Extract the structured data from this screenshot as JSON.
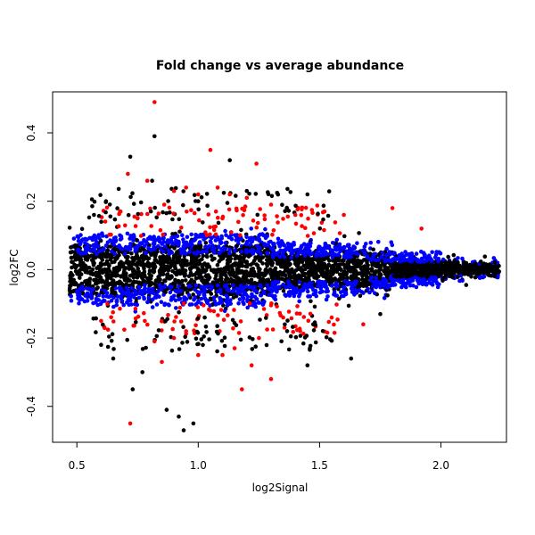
{
  "chart_data": {
    "type": "scatter",
    "title": "Fold change vs average abundance",
    "xlabel": "log2Signal",
    "ylabel": "log2FC",
    "xlim": [
      0.4,
      2.27
    ],
    "ylim": [
      -0.505,
      0.52
    ],
    "x_ticks": [
      "0.5",
      "1.0",
      "1.5",
      "2.0"
    ],
    "y_ticks": [
      "-0.4",
      "-0.2",
      "0.0",
      "0.2",
      "0.4"
    ],
    "grid": false,
    "legend": "none",
    "colors": {
      "black": "#000000",
      "blue": "#0000ff",
      "red": "#ff0000"
    },
    "series": [
      {
        "color": "red",
        "points": [
          [
            0.82,
            0.49
          ],
          [
            1.05,
            0.35
          ],
          [
            1.24,
            0.31
          ],
          [
            0.71,
            0.28
          ],
          [
            0.79,
            0.26
          ],
          [
            0.9,
            0.23
          ],
          [
            0.95,
            0.24
          ],
          [
            1.0,
            0.22
          ],
          [
            1.08,
            0.24
          ],
          [
            1.13,
            0.22
          ],
          [
            1.2,
            0.21
          ],
          [
            0.68,
            0.17
          ],
          [
            0.86,
            0.19
          ],
          [
            1.3,
            0.19
          ],
          [
            1.4,
            0.16
          ],
          [
            1.52,
            0.17
          ],
          [
            1.6,
            0.16
          ],
          [
            1.8,
            0.18
          ],
          [
            0.75,
            0.15
          ],
          [
            1.1,
            0.15
          ],
          [
            1.92,
            0.12
          ],
          [
            0.72,
            -0.45
          ],
          [
            1.18,
            -0.35
          ],
          [
            1.3,
            -0.32
          ],
          [
            0.85,
            -0.27
          ],
          [
            1.0,
            -0.25
          ],
          [
            1.1,
            -0.25
          ],
          [
            1.22,
            -0.28
          ],
          [
            0.6,
            -0.15
          ],
          [
            0.78,
            -0.15
          ],
          [
            0.95,
            -0.18
          ],
          [
            1.25,
            -0.2
          ],
          [
            1.42,
            -0.18
          ],
          [
            1.55,
            -0.14
          ],
          [
            1.68,
            -0.16
          ],
          [
            1.15,
            -0.23
          ],
          [
            0.9,
            -0.2
          ],
          [
            1.35,
            -0.14
          ],
          [
            0.82,
            -0.21
          ],
          [
            1.05,
            -0.12
          ]
        ]
      },
      {
        "color": "black",
        "points": [
          [
            0.82,
            0.39
          ],
          [
            1.13,
            0.32
          ],
          [
            0.72,
            0.33
          ],
          [
            0.94,
            -0.47
          ],
          [
            0.98,
            -0.45
          ],
          [
            0.87,
            -0.41
          ],
          [
            0.92,
            -0.43
          ],
          [
            1.45,
            -0.28
          ],
          [
            1.63,
            -0.26
          ],
          [
            1.46,
            -0.23
          ],
          [
            0.65,
            -0.26
          ],
          [
            0.81,
            0.26
          ],
          [
            1.0,
            0.2
          ],
          [
            0.62,
            0.2
          ],
          [
            1.2,
            0.23
          ],
          [
            0.6,
            -0.22
          ],
          [
            1.75,
            -0.13
          ],
          [
            0.73,
            -0.35
          ],
          [
            0.77,
            -0.3
          ]
        ]
      }
    ],
    "band_density": [
      {
        "x_range": [
          0.47,
          0.7
        ],
        "spread": 0.1
      },
      {
        "x_range": [
          0.7,
          1.3
        ],
        "spread": 0.11
      },
      {
        "x_range": [
          1.3,
          1.8
        ],
        "spread": 0.08
      },
      {
        "x_range": [
          1.8,
          2.24
        ],
        "spread": 0.03
      }
    ]
  }
}
